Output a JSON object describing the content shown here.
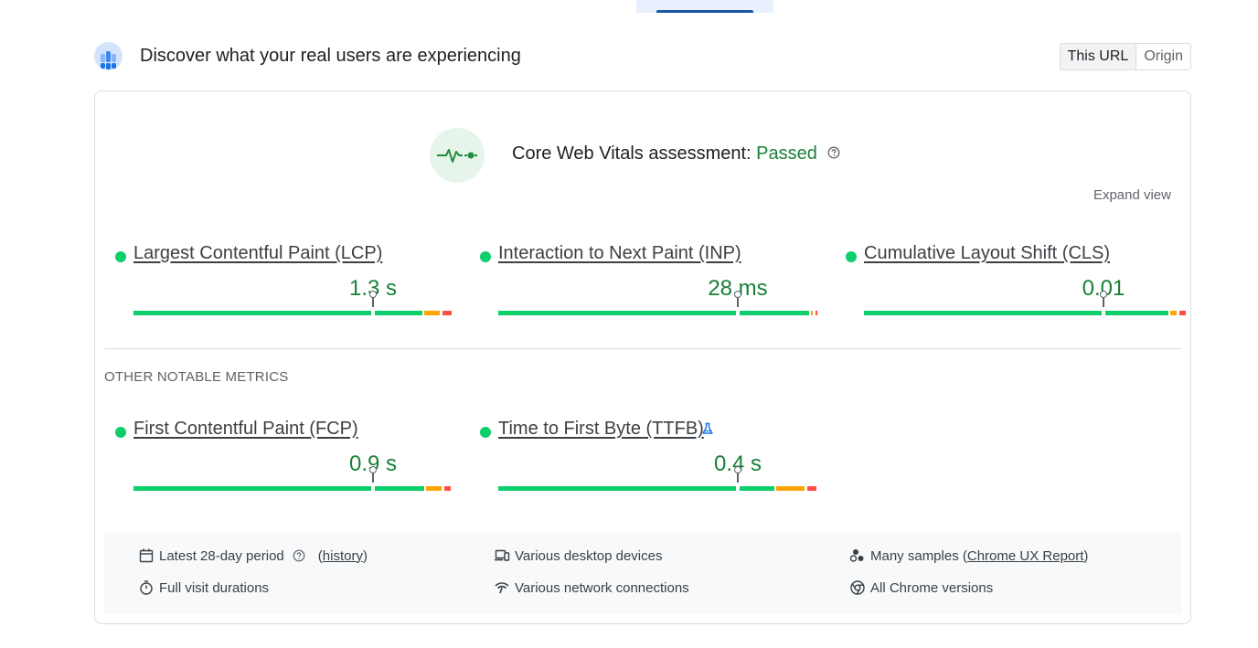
{
  "header": {
    "title": "Discover what your real users are experiencing",
    "toggle": [
      "This URL",
      "Origin"
    ],
    "active_toggle": "This URL"
  },
  "assessment": {
    "prefix": "Core Web Vitals assessment: ",
    "status": "Passed",
    "expand_label": "Expand view"
  },
  "core_metrics": [
    {
      "name": "Largest Contentful Paint (LCP)",
      "value": "1.3 s",
      "distribution": {
        "good": 0.905,
        "needs_improvement": 0.05,
        "poor": 0.03
      },
      "marker_position": 0.75
    },
    {
      "name": "Interaction to Next Paint (INP)",
      "value": "28 ms",
      "distribution": {
        "good": 0.975,
        "needs_improvement": 0.005,
        "poor": 0.005
      },
      "marker_position": 0.75
    },
    {
      "name": "Cumulative Layout Shift (CLS)",
      "value": "0.01",
      "distribution": {
        "good": 0.955,
        "needs_improvement": 0.02,
        "poor": 0.02
      },
      "marker_position": 0.75
    }
  ],
  "other_section_label": "OTHER NOTABLE METRICS",
  "other_metrics": [
    {
      "name": "First Contentful Paint (FCP)",
      "value": "0.9 s",
      "distribution": {
        "good": 0.91,
        "needs_improvement": 0.05,
        "poor": 0.02
      },
      "marker_position": 0.75,
      "experimental": false
    },
    {
      "name": "Time to First Byte (TTFB)",
      "value": "0.4 s",
      "distribution": {
        "good": 0.865,
        "needs_improvement": 0.09,
        "poor": 0.03
      },
      "marker_position": 0.75,
      "experimental": true
    }
  ],
  "footer": {
    "period": "Latest 28-day period",
    "history_link": "history",
    "devices": "Various desktop devices",
    "samples_prefix": "Many samples (",
    "samples_link": "Chrome UX Report",
    "samples_suffix": ")",
    "durations": "Full visit durations",
    "network": "Various network connections",
    "versions": "All Chrome versions"
  },
  "colors": {
    "good": "#0cce6b",
    "needs_improvement": "#ffa400",
    "poor": "#ff4e42",
    "value_text": "#188038"
  }
}
